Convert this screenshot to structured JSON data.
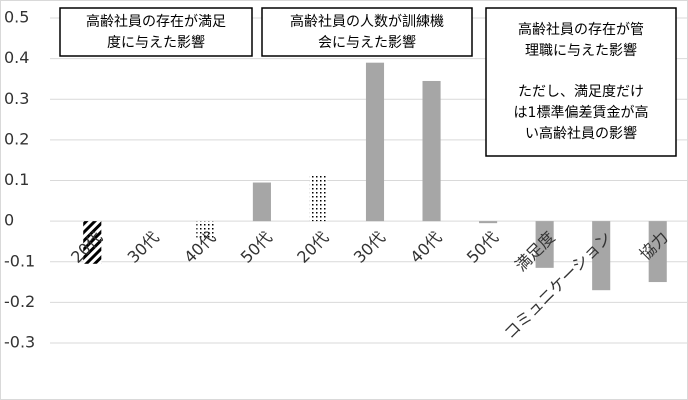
{
  "chart_data": {
    "type": "bar",
    "categories": [
      "20代",
      "30代",
      "40代",
      "50代",
      "20代",
      "30代",
      "40代",
      "50代",
      "満足度",
      "コミュニケーション",
      "協力"
    ],
    "values": [
      -0.105,
      0,
      -0.045,
      0.095,
      0.115,
      0.39,
      0.345,
      -0.005,
      -0.115,
      -0.17,
      -0.15
    ],
    "fills": [
      "hatch",
      "gray",
      "dots",
      "gray",
      "dots",
      "gray",
      "gray",
      "gray",
      "gray",
      "gray",
      "gray"
    ],
    "color": "#a6a6a6",
    "ylim": [
      -0.3,
      0.5
    ],
    "yticks": [
      -0.3,
      -0.2,
      -0.1,
      0,
      0.1,
      0.2,
      0.3,
      0.4,
      0.5
    ],
    "grid": true,
    "annotations": [
      {
        "lines": [
          "高齢社員の存在が満足",
          "度に与えた影響"
        ]
      },
      {
        "lines": [
          "高齢社員の人数が訓練機",
          "会に与えた影響"
        ]
      },
      {
        "lines": [
          "高齢社員の存在が管",
          "理職に与えた影響",
          "ただし、満足度だけ",
          "は1標準偏差賃金が高",
          "い高齢社員の影響"
        ]
      }
    ]
  }
}
